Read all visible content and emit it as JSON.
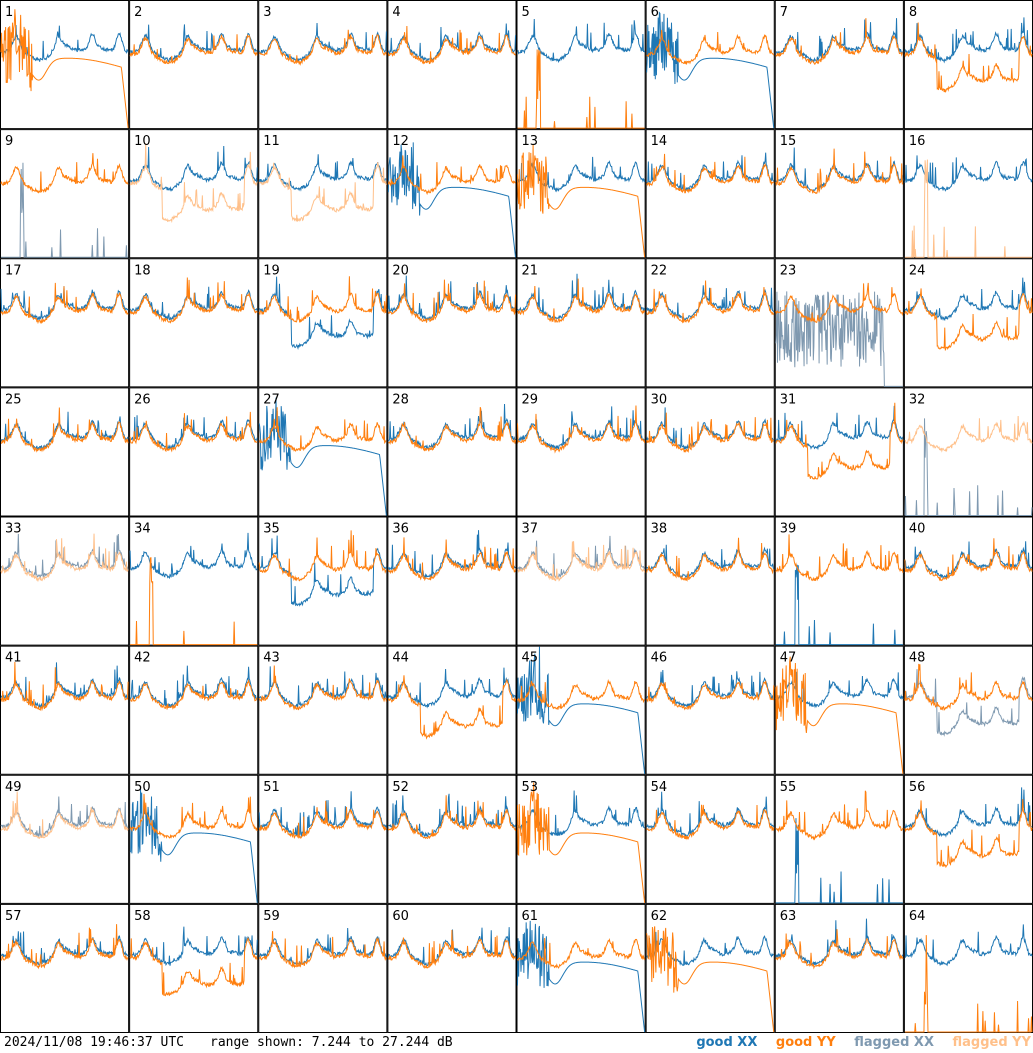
{
  "footer": {
    "timestamp": "2024/11/08 19:46:37 UTC",
    "range_text": "range shown: 7.244 to 27.244 dB"
  },
  "legend": [
    {
      "label": "good XX",
      "color": "#1f77b4"
    },
    {
      "label": "good YY",
      "color": "#ff7f0e"
    },
    {
      "label": "flagged XX",
      "color": "#7f99b0"
    },
    {
      "label": "flagged YY",
      "color": "#ffc08a"
    }
  ],
  "chart_data": {
    "type": "line",
    "rows": 8,
    "cols": 8,
    "y_range_db": [
      7.244,
      27.244
    ],
    "panels": [
      {
        "id": "1",
        "xx": "good",
        "yy": "good",
        "mode": "yydrop"
      },
      {
        "id": "2",
        "xx": "good",
        "yy": "good",
        "mode": "normal"
      },
      {
        "id": "3",
        "xx": "good",
        "yy": "good",
        "mode": "normal"
      },
      {
        "id": "4",
        "xx": "good",
        "yy": "good",
        "mode": "normal"
      },
      {
        "id": "5",
        "xx": "good",
        "yy": "good",
        "mode": "yydead"
      },
      {
        "id": "6",
        "xx": "good",
        "yy": "good",
        "mode": "xxdrop"
      },
      {
        "id": "7",
        "xx": "good",
        "yy": "good",
        "mode": "normal"
      },
      {
        "id": "8",
        "xx": "good",
        "yy": "good",
        "mode": "yylow"
      },
      {
        "id": "9",
        "xx": "flagged",
        "yy": "good",
        "mode": "xxdead"
      },
      {
        "id": "10",
        "xx": "good",
        "yy": "flagged",
        "mode": "yylow"
      },
      {
        "id": "11",
        "xx": "good",
        "yy": "flagged",
        "mode": "yylow"
      },
      {
        "id": "12",
        "xx": "good",
        "yy": "good",
        "mode": "xxdrop"
      },
      {
        "id": "13",
        "xx": "good",
        "yy": "good",
        "mode": "yydrop"
      },
      {
        "id": "14",
        "xx": "good",
        "yy": "good",
        "mode": "normal"
      },
      {
        "id": "15",
        "xx": "good",
        "yy": "good",
        "mode": "normal"
      },
      {
        "id": "16",
        "xx": "good",
        "yy": "flagged",
        "mode": "yydead"
      },
      {
        "id": "17",
        "xx": "good",
        "yy": "good",
        "mode": "normal"
      },
      {
        "id": "18",
        "xx": "good",
        "yy": "good",
        "mode": "normal"
      },
      {
        "id": "19",
        "xx": "good",
        "yy": "good",
        "mode": "xxlow"
      },
      {
        "id": "20",
        "xx": "good",
        "yy": "good",
        "mode": "normal"
      },
      {
        "id": "21",
        "xx": "good",
        "yy": "good",
        "mode": "normal"
      },
      {
        "id": "22",
        "xx": "good",
        "yy": "good",
        "mode": "normal"
      },
      {
        "id": "23",
        "xx": "flagged",
        "yy": "good",
        "mode": "xxnoisy"
      },
      {
        "id": "24",
        "xx": "good",
        "yy": "good",
        "mode": "yylow"
      },
      {
        "id": "25",
        "xx": "good",
        "yy": "good",
        "mode": "normal"
      },
      {
        "id": "26",
        "xx": "good",
        "yy": "good",
        "mode": "normal"
      },
      {
        "id": "27",
        "xx": "good",
        "yy": "good",
        "mode": "xxdrop"
      },
      {
        "id": "28",
        "xx": "good",
        "yy": "good",
        "mode": "normal"
      },
      {
        "id": "29",
        "xx": "good",
        "yy": "good",
        "mode": "normal"
      },
      {
        "id": "30",
        "xx": "good",
        "yy": "good",
        "mode": "normal"
      },
      {
        "id": "31",
        "xx": "good",
        "yy": "good",
        "mode": "yylow"
      },
      {
        "id": "32",
        "xx": "flagged",
        "yy": "flagged",
        "mode": "xxdead"
      },
      {
        "id": "33",
        "xx": "flagged",
        "yy": "flagged",
        "mode": "normal"
      },
      {
        "id": "34",
        "xx": "good",
        "yy": "good",
        "mode": "yydead"
      },
      {
        "id": "35",
        "xx": "good",
        "yy": "good",
        "mode": "xxlow"
      },
      {
        "id": "36",
        "xx": "good",
        "yy": "good",
        "mode": "normal"
      },
      {
        "id": "37",
        "xx": "flagged",
        "yy": "flagged",
        "mode": "normal"
      },
      {
        "id": "38",
        "xx": "good",
        "yy": "good",
        "mode": "normal"
      },
      {
        "id": "39",
        "xx": "good",
        "yy": "good",
        "mode": "xxdead"
      },
      {
        "id": "40",
        "xx": "good",
        "yy": "good",
        "mode": "normal"
      },
      {
        "id": "41",
        "xx": "good",
        "yy": "good",
        "mode": "normal"
      },
      {
        "id": "42",
        "xx": "good",
        "yy": "good",
        "mode": "normal"
      },
      {
        "id": "43",
        "xx": "good",
        "yy": "good",
        "mode": "normal"
      },
      {
        "id": "44",
        "xx": "good",
        "yy": "good",
        "mode": "yylow"
      },
      {
        "id": "45",
        "xx": "good",
        "yy": "good",
        "mode": "xxdrop"
      },
      {
        "id": "46",
        "xx": "good",
        "yy": "good",
        "mode": "normal"
      },
      {
        "id": "47",
        "xx": "good",
        "yy": "good",
        "mode": "yydrop"
      },
      {
        "id": "48",
        "xx": "flagged",
        "yy": "good",
        "mode": "xxlow"
      },
      {
        "id": "49",
        "xx": "flagged",
        "yy": "flagged",
        "mode": "normal"
      },
      {
        "id": "50",
        "xx": "good",
        "yy": "good",
        "mode": "xxdrop"
      },
      {
        "id": "51",
        "xx": "good",
        "yy": "good",
        "mode": "normal"
      },
      {
        "id": "52",
        "xx": "good",
        "yy": "good",
        "mode": "normal"
      },
      {
        "id": "53",
        "xx": "good",
        "yy": "good",
        "mode": "yydrop"
      },
      {
        "id": "54",
        "xx": "good",
        "yy": "good",
        "mode": "normal"
      },
      {
        "id": "55",
        "xx": "good",
        "yy": "good",
        "mode": "xxdead"
      },
      {
        "id": "56",
        "xx": "good",
        "yy": "good",
        "mode": "yylow"
      },
      {
        "id": "57",
        "xx": "good",
        "yy": "good",
        "mode": "normal"
      },
      {
        "id": "58",
        "xx": "good",
        "yy": "good",
        "mode": "yylow"
      },
      {
        "id": "59",
        "xx": "good",
        "yy": "good",
        "mode": "normal"
      },
      {
        "id": "60",
        "xx": "good",
        "yy": "good",
        "mode": "normal"
      },
      {
        "id": "61",
        "xx": "good",
        "yy": "good",
        "mode": "xxdrop"
      },
      {
        "id": "62",
        "xx": "good",
        "yy": "good",
        "mode": "yydrop"
      },
      {
        "id": "63",
        "xx": "good",
        "yy": "good",
        "mode": "normal"
      },
      {
        "id": "64",
        "xx": "good",
        "yy": "good",
        "mode": "yydead"
      }
    ]
  }
}
